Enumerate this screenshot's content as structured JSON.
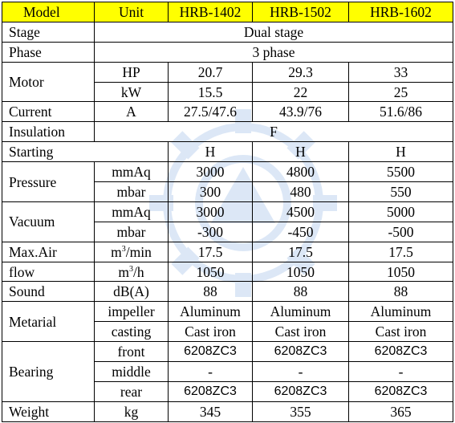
{
  "header": {
    "model_label": "Model",
    "unit_label": "Unit",
    "models": [
      "HRB-1402",
      "HRB-1502",
      "HRB-1602"
    ]
  },
  "stage": {
    "label": "Stage",
    "value": "Dual stage"
  },
  "phase": {
    "label": "Phase",
    "value": "3 phase"
  },
  "motor": {
    "label": "Motor",
    "hp": {
      "unit": "HP",
      "values": [
        "20.7",
        "29.3",
        "33"
      ]
    },
    "kw": {
      "unit": "kW",
      "values": [
        "15.5",
        "22",
        "25"
      ]
    }
  },
  "current": {
    "label": "Current",
    "unit": "A",
    "values": [
      "27.5/47.6",
      "43.9/76",
      "51.6/86"
    ]
  },
  "insulation": {
    "label": "Insulation",
    "value": "F"
  },
  "starting": {
    "label": "Starting",
    "values": [
      "H",
      "H",
      "H"
    ]
  },
  "pressure": {
    "label": "Pressure",
    "mmaq": {
      "unit": "mmAq",
      "values": [
        "3000",
        "4800",
        "5500"
      ]
    },
    "mbar": {
      "unit": "mbar",
      "values": [
        "300",
        "480",
        "550"
      ]
    }
  },
  "vacuum": {
    "label": "Vacuum",
    "mmaq": {
      "unit": "mmAq",
      "values": [
        "3000",
        "4500",
        "5000"
      ]
    },
    "mbar": {
      "unit": "mbar",
      "values": [
        "-300",
        "-450",
        "-500"
      ]
    }
  },
  "airflow": {
    "label_line1": "Max.Air",
    "label_line2": "flow",
    "per_min": {
      "unit_base": "m",
      "unit_sup": "3",
      "unit_tail": "/min",
      "values": [
        "17.5",
        "17.5",
        "17.5"
      ]
    },
    "per_h": {
      "unit_base": "m",
      "unit_sup": "3",
      "unit_tail": "/h",
      "values": [
        "1050",
        "1050",
        "1050"
      ]
    }
  },
  "sound": {
    "label": "Sound",
    "unit": "dB(A)",
    "values": [
      "88",
      "88",
      "88"
    ]
  },
  "material": {
    "label": "Metarial",
    "impeller": {
      "unit": "impeller",
      "values": [
        "Aluminum",
        "Aluminum",
        "Aluminum"
      ]
    },
    "casting": {
      "unit": "casting",
      "values": [
        "Cast iron",
        "Cast iron",
        "Cast iron"
      ]
    }
  },
  "bearing": {
    "label": "Bearing",
    "front": {
      "unit": "front",
      "values": [
        "6208ZC3",
        "6208ZC3",
        "6208ZC3"
      ]
    },
    "middle": {
      "unit": "middle",
      "values": [
        "-",
        "-",
        "-"
      ]
    },
    "rear": {
      "unit": "rear",
      "values": [
        "6208ZC3",
        "6208ZC3",
        "6208ZC3"
      ]
    }
  },
  "weight": {
    "label": "Weight",
    "unit": "kg",
    "values": [
      "345",
      "355",
      "365"
    ]
  },
  "colors": {
    "header_bg": "#ffff00",
    "border": "#000000",
    "watermark": "#2a6fc9"
  },
  "watermark_icon": "gear-logo-icon"
}
